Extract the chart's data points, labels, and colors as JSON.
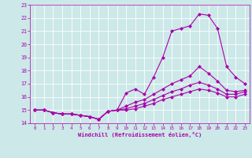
{
  "xlabel": "Windchill (Refroidissement éolien,°C)",
  "xlim": [
    -0.5,
    23.5
  ],
  "ylim": [
    14,
    23
  ],
  "yticks": [
    14,
    15,
    16,
    17,
    18,
    19,
    20,
    21,
    22,
    23
  ],
  "xticks": [
    0,
    1,
    2,
    3,
    4,
    5,
    6,
    7,
    8,
    9,
    10,
    11,
    12,
    13,
    14,
    15,
    16,
    17,
    18,
    19,
    20,
    21,
    22,
    23
  ],
  "bg_color": "#cce8e8",
  "grid_color": "#ffffff",
  "line_color": "#aa00aa",
  "markersize": 2.5,
  "linewidth": 0.8,
  "lines": [
    [
      15.0,
      15.0,
      14.8,
      14.7,
      14.7,
      14.6,
      14.5,
      14.3,
      14.9,
      15.0,
      16.3,
      16.6,
      16.2,
      17.5,
      19.0,
      21.0,
      21.2,
      21.4,
      22.3,
      22.2,
      21.2,
      18.3,
      17.5,
      17.0
    ],
    [
      15.0,
      15.0,
      14.8,
      14.7,
      14.7,
      14.6,
      14.5,
      14.3,
      14.9,
      15.0,
      15.3,
      15.6,
      15.8,
      16.2,
      16.6,
      17.0,
      17.3,
      17.6,
      18.3,
      17.8,
      17.2,
      16.5,
      16.4,
      16.5
    ],
    [
      15.0,
      15.0,
      14.8,
      14.7,
      14.7,
      14.6,
      14.5,
      14.3,
      14.9,
      15.0,
      15.1,
      15.3,
      15.5,
      15.8,
      16.1,
      16.4,
      16.6,
      16.9,
      17.1,
      16.9,
      16.6,
      16.2,
      16.2,
      16.4
    ],
    [
      15.0,
      15.0,
      14.8,
      14.7,
      14.7,
      14.6,
      14.5,
      14.3,
      14.9,
      15.0,
      15.0,
      15.1,
      15.3,
      15.5,
      15.8,
      16.0,
      16.2,
      16.4,
      16.6,
      16.5,
      16.3,
      16.0,
      16.0,
      16.2
    ]
  ]
}
